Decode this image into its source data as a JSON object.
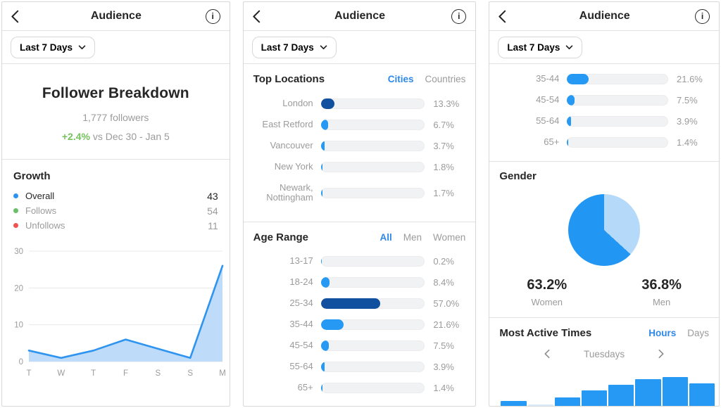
{
  "header": {
    "title": "Audience",
    "filter_label": "Last 7 Days"
  },
  "accent": {
    "tab_blue": "#2f88e8",
    "bar_blue": "#2699f4",
    "bar_dark_blue": "#11509e",
    "green": "#76c25e"
  },
  "panel1": {
    "title": "Follower Breakdown",
    "followers": "1,777 followers",
    "delta": "+2.4%",
    "delta_context": "vs Dec 30 - Jan 5",
    "growth": {
      "heading": "Growth",
      "legend": [
        {
          "label": "Overall",
          "value": "43",
          "color": "#2e93ee"
        },
        {
          "label": "Follows",
          "value": "54",
          "color": "#6abf69"
        },
        {
          "label": "Unfollows",
          "value": "11",
          "color": "#ef5350"
        }
      ]
    },
    "chart_data": {
      "type": "area",
      "x_labels": [
        "T",
        "W",
        "T",
        "F",
        "S",
        "S",
        "M"
      ],
      "values": [
        3,
        1,
        3,
        6,
        3.5,
        1,
        26
      ],
      "ylim": [
        0,
        30
      ],
      "yticks": [
        0,
        10,
        20,
        30
      ],
      "line_color": "#2e94ef",
      "area_color": "#bedcf9",
      "grid": true
    }
  },
  "panel2": {
    "top_locations": {
      "heading": "Top Locations",
      "tabs": [
        "Cities",
        "Countries"
      ],
      "active_tab": "Cities",
      "rows": [
        {
          "label": "London",
          "value": 13.3,
          "display": "13.3%",
          "dark": true
        },
        {
          "label": "East Retford",
          "value": 6.7,
          "display": "6.7%"
        },
        {
          "label": "Vancouver",
          "value": 3.7,
          "display": "3.7%"
        },
        {
          "label": "New York",
          "value": 1.8,
          "display": "1.8%"
        },
        {
          "label": "Newark, Nottingham",
          "value": 1.7,
          "display": "1.7%"
        }
      ]
    },
    "age_range": {
      "heading": "Age Range",
      "tabs": [
        "All",
        "Men",
        "Women"
      ],
      "active_tab": "All",
      "rows": [
        {
          "label": "13-17",
          "value": 0.2,
          "display": "0.2%"
        },
        {
          "label": "18-24",
          "value": 8.4,
          "display": "8.4%"
        },
        {
          "label": "25-34",
          "value": 57.0,
          "display": "57.0%",
          "dark": true
        },
        {
          "label": "35-44",
          "value": 21.6,
          "display": "21.6%"
        },
        {
          "label": "45-54",
          "value": 7.5,
          "display": "7.5%"
        },
        {
          "label": "55-64",
          "value": 3.9,
          "display": "3.9%"
        },
        {
          "label": "65+",
          "value": 1.4,
          "display": "1.4%"
        }
      ]
    }
  },
  "panel3": {
    "age_rows": [
      {
        "label": "35-44",
        "value": 21.6,
        "display": "21.6%"
      },
      {
        "label": "45-54",
        "value": 7.5,
        "display": "7.5%"
      },
      {
        "label": "55-64",
        "value": 3.9,
        "display": "3.9%"
      },
      {
        "label": "65+",
        "value": 1.4,
        "display": "1.4%"
      }
    ],
    "gender": {
      "heading": "Gender",
      "pie": {
        "men_pct": 36.8,
        "women_pct": 63.2,
        "men_color": "#b5d9f8",
        "women_color": "#2196f3"
      },
      "stats": [
        {
          "value": "63.2%",
          "label": "Women"
        },
        {
          "value": "36.8%",
          "label": "Men"
        }
      ]
    },
    "most_active": {
      "heading": "Most Active Times",
      "tabs": [
        "Hours",
        "Days"
      ],
      "active_tab": "Hours",
      "carousel": "Tuesdays",
      "bars": [
        7,
        2,
        12,
        22,
        30,
        38,
        41,
        32
      ],
      "light_bar_index": 1
    }
  }
}
